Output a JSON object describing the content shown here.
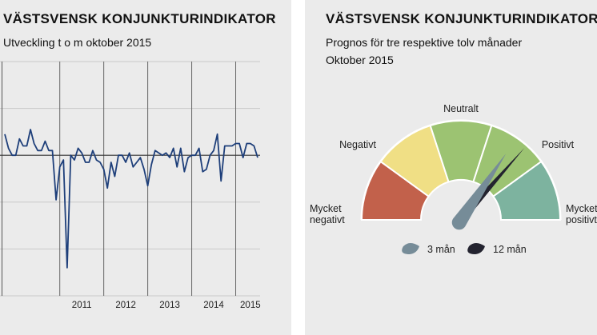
{
  "left_panel": {
    "title": "VÄSTSVENSK KONJUNKTURINDIKATOR",
    "subtitle": "Utveckling t o m oktober 2015"
  },
  "right_panel": {
    "title": "VÄSTSVENSK KONJUNKTURINDIKATOR",
    "subtitle1": "Prognos för tre respektive tolv månader",
    "subtitle2": "Oktober 2015",
    "legend": [
      {
        "label": "3 mån",
        "color": "#768c98"
      },
      {
        "label": "12 mån",
        "color": "#23232f"
      }
    ]
  },
  "chart_data": [
    {
      "type": "line",
      "title": "VÄSTSVENSK KONJUNKTURINDIKATOR",
      "subtitle": "Utveckling t o m oktober 2015",
      "x_tick_labels": [
        "2011",
        "2012",
        "2013",
        "2014",
        "2015"
      ],
      "ylim": [
        -60,
        40
      ],
      "y_gridlines": [
        -60,
        -40,
        -20,
        0,
        20,
        40
      ],
      "reference_line": 0,
      "grid": true,
      "series": [
        {
          "color": "#1e3f7a",
          "values": [
            9,
            3,
            0,
            0,
            7,
            4,
            4,
            11,
            5,
            2,
            2,
            6,
            2,
            2,
            -19,
            -5,
            -2,
            -48,
            0,
            -2,
            3,
            1,
            -3,
            -3,
            2,
            -2,
            -3,
            -6,
            -14,
            -3,
            -9,
            0,
            0,
            -3,
            1,
            -5,
            -3,
            -1,
            -6,
            -13,
            -4,
            2,
            1,
            0,
            1,
            -1,
            3,
            -5,
            3,
            -7,
            -1,
            0,
            0,
            3,
            -7,
            -6,
            0,
            2,
            9,
            -11,
            4,
            4,
            4,
            5,
            5,
            -1,
            5,
            5,
            4,
            -1
          ]
        }
      ]
    },
    {
      "type": "gauge",
      "title": "VÄSTSVENSK KONJUNKTURINDIKATOR",
      "segments": [
        {
          "label": "Mycket negativt",
          "color": "#c2614b"
        },
        {
          "label": "Negativt",
          "color": "#f0df85"
        },
        {
          "label": "Neutralt",
          "color": "#9cc372"
        },
        {
          "label": "Positivt",
          "color": "#9cc372"
        },
        {
          "label": "Mycket positivt",
          "color": "#7db39f"
        }
      ],
      "needles": [
        {
          "series": "3 mån",
          "position": 0.69,
          "color": "#768c98"
        },
        {
          "series": "12 mån",
          "position": 0.73,
          "color": "#23232f"
        }
      ]
    }
  ]
}
